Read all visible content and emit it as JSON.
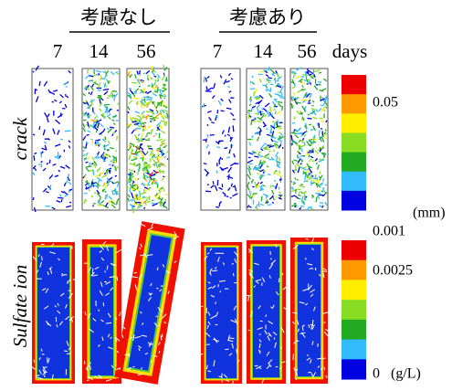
{
  "header": {
    "left": "考慮なし",
    "right": "考慮あり"
  },
  "days": {
    "left": [
      "7",
      "14",
      "56"
    ],
    "right": [
      "7",
      "14",
      "56"
    ],
    "unit": "days"
  },
  "rows": {
    "crack": "crack",
    "sulfate": "Sulfate ion"
  },
  "crack_scale": {
    "label": "0.05",
    "unit": "(mm)"
  },
  "sulfate_scale": {
    "labels": [
      "0.001",
      "0.0025",
      "0"
    ],
    "unit": "(g/L)"
  }
}
